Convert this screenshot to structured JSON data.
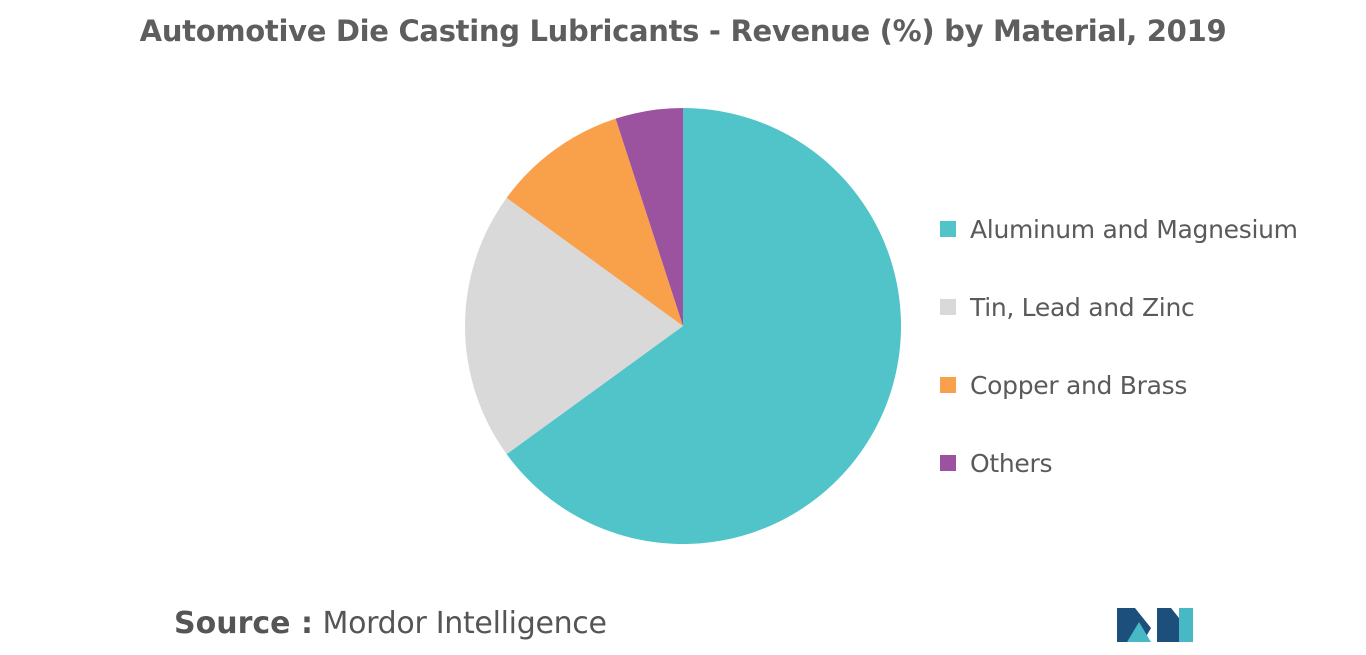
{
  "chart_data": {
    "type": "pie",
    "title": "Automotive Die Casting Lubricants - Revenue (%) by Material, 2019",
    "start_angle_deg": 0,
    "direction": "clockwise",
    "slices": [
      {
        "label": "Aluminum and Magnesium",
        "value": 65,
        "color": "#50c4c9"
      },
      {
        "label": "Tin, Lead and Zinc",
        "value": 20,
        "color": "#d9d9d9"
      },
      {
        "label": "Copper and Brass",
        "value": 10,
        "color": "#f9a04a"
      },
      {
        "label": "Others",
        "value": 5,
        "color": "#9b539f"
      }
    ],
    "legend_position": "right"
  },
  "legend": {
    "items": [
      {
        "label": "Aluminum and Magnesium",
        "color": "#50c4c9"
      },
      {
        "label": "Tin, Lead and Zinc",
        "color": "#d9d9d9"
      },
      {
        "label": "Copper and Brass",
        "color": "#f9a04a"
      },
      {
        "label": "Others",
        "color": "#9b539f"
      }
    ]
  },
  "source": {
    "label": "Source :",
    "value": "Mordor Intelligence"
  },
  "logo": {
    "icon": "mordor-intelligence-logo-icon",
    "colors": [
      "#1d4f7c",
      "#47b9c4"
    ]
  }
}
